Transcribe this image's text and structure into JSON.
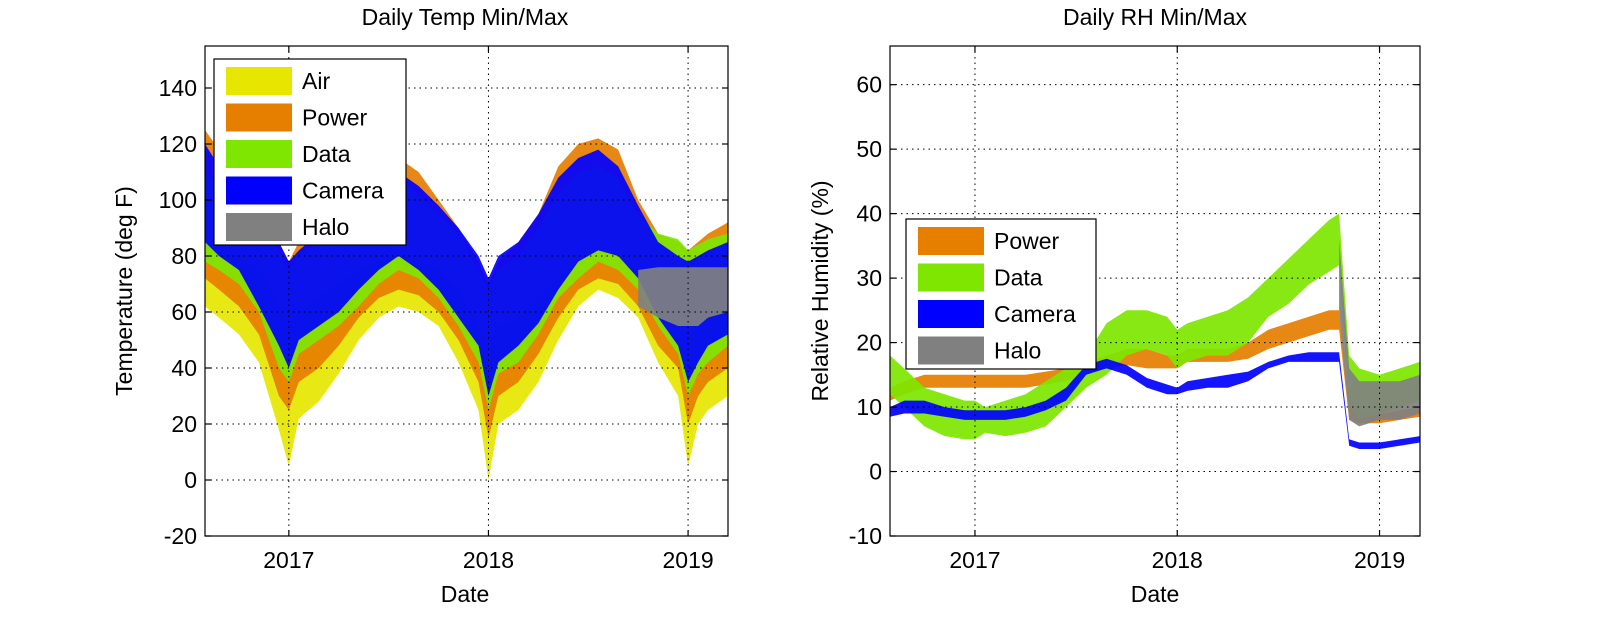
{
  "chart_data": [
    {
      "type": "area",
      "title": "Daily Temp Min/Max",
      "xlabel": "Date",
      "ylabel": "Temperature (deg F)",
      "xlim": [
        2016.58,
        2019.2
      ],
      "ylim": [
        -20,
        155
      ],
      "xticks": [
        2017,
        2018,
        2019
      ],
      "xtick_labels": [
        "2017",
        "2018",
        "2019"
      ],
      "yticks": [
        -20,
        0,
        20,
        40,
        60,
        80,
        100,
        120,
        140
      ],
      "ytick_labels": [
        "-20",
        "0",
        "20",
        "40",
        "60",
        "80",
        "100",
        "120",
        "140"
      ],
      "grid": true,
      "legend": "top-left",
      "x": [
        2016.58,
        2016.65,
        2016.75,
        2016.85,
        2016.95,
        2017.0,
        2017.05,
        2017.15,
        2017.25,
        2017.35,
        2017.45,
        2017.55,
        2017.65,
        2017.75,
        2017.85,
        2017.95,
        2018.0,
        2018.05,
        2018.15,
        2018.25,
        2018.35,
        2018.45,
        2018.55,
        2018.65,
        2018.75,
        2018.85,
        2018.95,
        2019.0,
        2019.05,
        2019.1,
        2019.2
      ],
      "series": [
        {
          "name": "Air",
          "color": "#e6e600",
          "min": [
            62,
            58,
            52,
            42,
            18,
            5,
            22,
            28,
            38,
            50,
            58,
            62,
            60,
            55,
            42,
            25,
            0,
            20,
            25,
            35,
            50,
            62,
            68,
            65,
            58,
            42,
            30,
            5,
            20,
            25,
            30
          ],
          "max": [
            85,
            85,
            80,
            75,
            62,
            55,
            60,
            65,
            70,
            75,
            78,
            80,
            78,
            75,
            68,
            55,
            45,
            55,
            58,
            65,
            72,
            78,
            80,
            78,
            75,
            65,
            55,
            50,
            55,
            58,
            60
          ]
        },
        {
          "name": "Power",
          "color": "#e67e00",
          "min": [
            72,
            68,
            62,
            52,
            30,
            25,
            35,
            40,
            48,
            58,
            65,
            68,
            66,
            60,
            50,
            35,
            15,
            30,
            35,
            45,
            58,
            68,
            72,
            70,
            62,
            48,
            40,
            20,
            30,
            35,
            40
          ],
          "max": [
            125,
            118,
            110,
            100,
            85,
            78,
            85,
            90,
            95,
            105,
            112,
            115,
            110,
            100,
            90,
            78,
            70,
            78,
            85,
            95,
            112,
            120,
            122,
            118,
            100,
            88,
            85,
            82,
            85,
            88,
            92
          ]
        },
        {
          "name": "Data",
          "color": "#7ee600",
          "min": [
            78,
            75,
            70,
            60,
            40,
            35,
            45,
            50,
            55,
            62,
            70,
            75,
            72,
            65,
            55,
            42,
            25,
            38,
            42,
            52,
            65,
            72,
            78,
            75,
            68,
            55,
            45,
            30,
            38,
            42,
            48
          ],
          "max": [
            110,
            105,
            100,
            95,
            82,
            75,
            80,
            85,
            90,
            98,
            105,
            108,
            102,
            95,
            88,
            75,
            68,
            75,
            80,
            90,
            102,
            110,
            112,
            108,
            95,
            88,
            86,
            82,
            84,
            86,
            88
          ]
        },
        {
          "name": "Camera",
          "color": "#0000ff",
          "min": [
            85,
            80,
            75,
            62,
            48,
            40,
            50,
            55,
            60,
            68,
            75,
            80,
            75,
            68,
            58,
            48,
            30,
            42,
            48,
            56,
            68,
            78,
            82,
            80,
            72,
            58,
            48,
            35,
            42,
            48,
            52
          ],
          "max": [
            120,
            112,
            105,
            98,
            85,
            78,
            82,
            88,
            92,
            100,
            108,
            110,
            105,
            98,
            90,
            80,
            72,
            80,
            85,
            95,
            108,
            115,
            118,
            112,
            98,
            85,
            80,
            78,
            80,
            82,
            85
          ]
        },
        {
          "name": "Halo",
          "color": "#808080",
          "min": [
            null,
            null,
            null,
            null,
            null,
            null,
            null,
            null,
            null,
            null,
            null,
            null,
            null,
            null,
            null,
            null,
            null,
            null,
            null,
            null,
            null,
            null,
            null,
            null,
            62,
            58,
            55,
            55,
            55,
            58,
            60
          ],
          "max": [
            null,
            null,
            null,
            null,
            null,
            null,
            null,
            null,
            null,
            null,
            null,
            null,
            null,
            null,
            null,
            null,
            null,
            null,
            null,
            null,
            null,
            null,
            null,
            null,
            75,
            76,
            76,
            76,
            76,
            76,
            76
          ]
        }
      ]
    },
    {
      "type": "area",
      "title": "Daily RH Min/Max",
      "xlabel": "Date",
      "ylabel": "Relative Humidity (%)",
      "xlim": [
        2016.58,
        2019.2
      ],
      "ylim": [
        -10,
        66
      ],
      "xticks": [
        2017,
        2018,
        2019
      ],
      "xtick_labels": [
        "2017",
        "2018",
        "2019"
      ],
      "yticks": [
        -10,
        0,
        10,
        20,
        30,
        40,
        50,
        60
      ],
      "ytick_labels": [
        "-10",
        "0",
        "10",
        "20",
        "30",
        "40",
        "50",
        "60"
      ],
      "grid": true,
      "legend": "center-left",
      "x": [
        2016.58,
        2016.65,
        2016.75,
        2016.85,
        2016.95,
        2017.0,
        2017.05,
        2017.15,
        2017.25,
        2017.35,
        2017.45,
        2017.55,
        2017.65,
        2017.75,
        2017.85,
        2017.95,
        2018.0,
        2018.05,
        2018.15,
        2018.25,
        2018.35,
        2018.45,
        2018.55,
        2018.65,
        2018.75,
        2018.8,
        2018.85,
        2018.9,
        2019.0,
        2019.1,
        2019.2
      ],
      "series": [
        {
          "name": "Power",
          "color": "#e67e00",
          "min": [
            11,
            12,
            13,
            13,
            13,
            13,
            13,
            13,
            13,
            13.5,
            14,
            15,
            16,
            16.5,
            16,
            16,
            16,
            17,
            17,
            17,
            17.5,
            19,
            20,
            21,
            22,
            22,
            8,
            7.5,
            7.5,
            8,
            8.5
          ],
          "max": [
            13,
            14,
            15,
            15,
            15,
            15,
            15,
            15,
            15,
            15.5,
            16,
            17,
            18,
            19,
            19,
            18,
            18,
            19,
            19,
            19,
            20,
            22,
            23,
            24,
            25,
            25,
            10,
            9,
            9,
            9.5,
            10
          ]
        },
        {
          "name": "Data",
          "color": "#7ee600",
          "min": [
            12,
            10,
            7,
            5.5,
            5,
            5,
            6,
            5.5,
            6,
            7,
            10,
            13,
            15,
            18,
            19,
            18,
            16,
            17,
            18,
            18,
            20,
            24,
            26,
            29,
            31,
            32,
            10,
            8,
            9,
            10,
            11
          ],
          "max": [
            18,
            16,
            13,
            12,
            11,
            11,
            10,
            11,
            12,
            14,
            16,
            18,
            23,
            25,
            25,
            24,
            22,
            23,
            24,
            25,
            27,
            30,
            33,
            36,
            39,
            40,
            18,
            16,
            15,
            16,
            17
          ]
        },
        {
          "name": "Camera",
          "color": "#0000ff",
          "min": [
            8.5,
            9,
            9,
            8.5,
            8,
            8,
            8,
            8,
            8.5,
            9.5,
            11,
            15,
            16,
            15,
            13,
            12,
            12,
            12.5,
            13,
            13,
            14,
            16,
            17,
            17,
            17,
            17,
            4,
            3.5,
            3.5,
            4,
            4.5
          ],
          "max": [
            10,
            11,
            11,
            10,
            9.5,
            9.5,
            9.5,
            9.5,
            10,
            11,
            13,
            16.5,
            17.5,
            16.5,
            14.5,
            13.5,
            13,
            14,
            14.5,
            15,
            15.5,
            17,
            18,
            18.5,
            18.5,
            18.5,
            5,
            4.5,
            4.5,
            5,
            5.5
          ]
        },
        {
          "name": "Halo",
          "color": "#808080",
          "min": [
            null,
            null,
            null,
            null,
            null,
            null,
            null,
            null,
            null,
            null,
            null,
            null,
            null,
            null,
            null,
            null,
            null,
            null,
            null,
            null,
            null,
            null,
            null,
            null,
            null,
            25,
            8,
            7,
            8,
            8,
            9
          ],
          "max": [
            null,
            null,
            null,
            null,
            null,
            null,
            null,
            null,
            null,
            null,
            null,
            null,
            null,
            null,
            null,
            null,
            null,
            null,
            null,
            null,
            null,
            null,
            null,
            null,
            null,
            36,
            16,
            14,
            14,
            14,
            15
          ]
        }
      ]
    }
  ]
}
